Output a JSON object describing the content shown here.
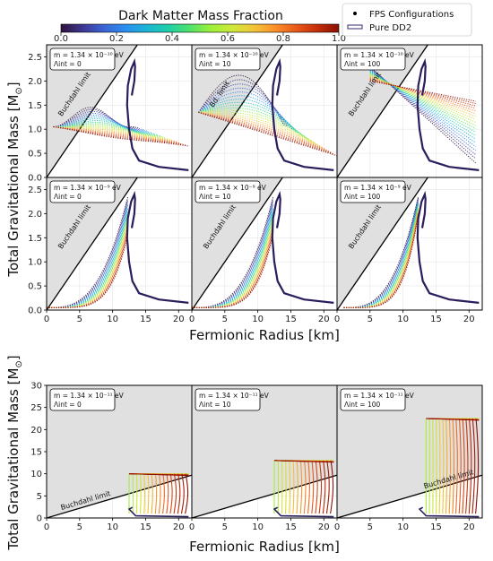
{
  "colorbar": {
    "title": "Dark Matter Mass Fraction",
    "min": 0.0,
    "max": 1.0,
    "ticks": [
      "0.0",
      "0.2",
      "0.4",
      "0.6",
      "0.8",
      "1.0"
    ],
    "colormap": [
      "#30123b",
      "#3e378f",
      "#3b63d6",
      "#2a8ef0",
      "#1ab4d6",
      "#1ecfa8",
      "#4ee26c",
      "#9bf03a",
      "#cee93a",
      "#f3c63a",
      "#fb9128",
      "#e9591a",
      "#c42e08",
      "#8a1003"
    ]
  },
  "legend": [
    {
      "label": "FPS Configurations"
    },
    {
      "label": "Pure DD2"
    }
  ],
  "labels": {
    "ylabel": "Total Gravitational Mass [M",
    "ylabel_sub": "⊙",
    "ylabel_end": "]",
    "xlabel_top": "Fermionic Radius [km]",
    "xlabel_bottom": "Fermionic Radius [km]"
  },
  "chart_data": [
    {
      "type": "scatter",
      "row": 1,
      "panels": [
        {
          "mass": "m = 1.34 × 10⁻¹⁰ eV",
          "lambda": "Λint = 0",
          "limit_label": "Buchdahl limit"
        },
        {
          "mass": "m = 1.34 × 10⁻¹⁰ eV",
          "lambda": "Λint = 10",
          "limit_label": "Bd. limit"
        },
        {
          "mass": "m = 1.34 × 10⁻¹⁰ eV",
          "lambda": "Λint = 100",
          "limit_label": "Buchdahl limit"
        }
      ],
      "xlim": [
        0,
        22
      ],
      "ylim": [
        0,
        2.75
      ],
      "xticks": [
        "0",
        "5",
        "10",
        "15",
        "20"
      ],
      "yticks": [
        "0.0",
        "0.5",
        "1.0",
        "1.5",
        "2.0",
        "2.5"
      ],
      "series": [
        {
          "name": "Pure DD2",
          "x": [
            21.5,
            17,
            14,
            13,
            12.5,
            12.2,
            12.3,
            12.8,
            13.3,
            13.4,
            13.3,
            12.9
          ],
          "y": [
            0.15,
            0.22,
            0.35,
            0.6,
            1.0,
            1.5,
            1.9,
            2.25,
            2.4,
            2.3,
            2.0,
            1.7
          ]
        }
      ]
    },
    {
      "type": "scatter",
      "row": 2,
      "panels": [
        {
          "mass": "m = 1.34 × 10⁻⁹ eV",
          "lambda": "Λint = 0",
          "limit_label": "Buchdahl limit"
        },
        {
          "mass": "m = 1.34 × 10⁻⁹ eV",
          "lambda": "Λint = 10",
          "limit_label": "Buchdahl limit"
        },
        {
          "mass": "m = 1.34 × 10⁻⁹ eV",
          "lambda": "Λint = 100",
          "limit_label": "Buchdahl limit"
        }
      ],
      "xlim": [
        0,
        22
      ],
      "ylim": [
        0,
        2.75
      ],
      "xticks": [
        "0",
        "5",
        "10",
        "15",
        "20"
      ],
      "yticks": [
        "0.0",
        "0.5",
        "1.0",
        "1.5",
        "2.0",
        "2.5"
      ]
    },
    {
      "type": "scatter",
      "row": 3,
      "panels": [
        {
          "mass": "m = 1.34 × 10⁻¹¹ eV",
          "lambda": "Λint = 0",
          "limit_label": "Buchdahl limit"
        },
        {
          "mass": "m = 1.34 × 10⁻¹¹ eV",
          "lambda": "Λint = 10",
          "limit_label": ""
        },
        {
          "mass": "m = 1.34 × 10⁻¹¹ eV",
          "lambda": "Λint = 100",
          "limit_label": "Buchdahl limit"
        }
      ],
      "xlim": [
        0,
        22
      ],
      "ylim": [
        0,
        30
      ],
      "xticks": [
        "0",
        "5",
        "10",
        "15",
        "20"
      ],
      "yticks": [
        "0",
        "5",
        "10",
        "15",
        "20",
        "25",
        "30"
      ]
    }
  ]
}
